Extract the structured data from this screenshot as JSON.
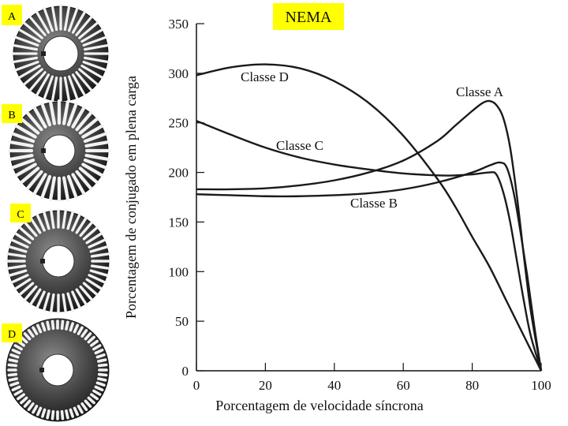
{
  "figure": {
    "title": "NEMA",
    "title_bg": "#ffff00",
    "rotor_labels": [
      "A",
      "B",
      "C",
      "D"
    ]
  },
  "chart_data": {
    "type": "line",
    "title": "NEMA",
    "xlabel": "Porcentagem de velocidade síncrona",
    "ylabel": "Porcentagem de conjugado em plena carga",
    "xlim": [
      0,
      100
    ],
    "ylim": [
      0,
      350
    ],
    "xticks": [
      0,
      20,
      40,
      60,
      80,
      100
    ],
    "yticks": [
      0,
      50,
      100,
      150,
      200,
      250,
      300,
      350
    ],
    "grid": false,
    "series": [
      {
        "name": "Classe A",
        "x": [
          0,
          10,
          20,
          30,
          40,
          50,
          60,
          70,
          75,
          80,
          83,
          85,
          87,
          89,
          91,
          93,
          95,
          97,
          100
        ],
        "y": [
          183,
          183,
          184,
          187,
          192,
          200,
          212,
          232,
          247,
          262,
          270,
          272,
          268,
          255,
          225,
          175,
          115,
          60,
          0
        ]
      },
      {
        "name": "Classe B",
        "x": [
          0,
          10,
          20,
          30,
          40,
          50,
          60,
          70,
          80,
          85,
          88,
          90,
          92,
          94,
          96,
          98,
          100
        ],
        "y": [
          178,
          177,
          176,
          176,
          177,
          179,
          183,
          190,
          200,
          207,
          210,
          205,
          180,
          140,
          95,
          45,
          0
        ]
      },
      {
        "name": "Classe C",
        "x": [
          0,
          10,
          20,
          30,
          40,
          50,
          60,
          70,
          75,
          80,
          85,
          87,
          89,
          91,
          93,
          95,
          97,
          100
        ],
        "y": [
          252,
          238,
          225,
          215,
          208,
          203,
          199,
          197,
          197,
          198,
          200,
          198,
          180,
          150,
          110,
          70,
          35,
          0
        ]
      },
      {
        "name": "Classe D",
        "x": [
          0,
          10,
          20,
          30,
          40,
          50,
          60,
          70,
          75,
          80,
          85,
          90,
          95,
          100
        ],
        "y": [
          298,
          306,
          309,
          305,
          292,
          270,
          237,
          193,
          166,
          135,
          105,
          70,
          35,
          0
        ]
      }
    ]
  }
}
